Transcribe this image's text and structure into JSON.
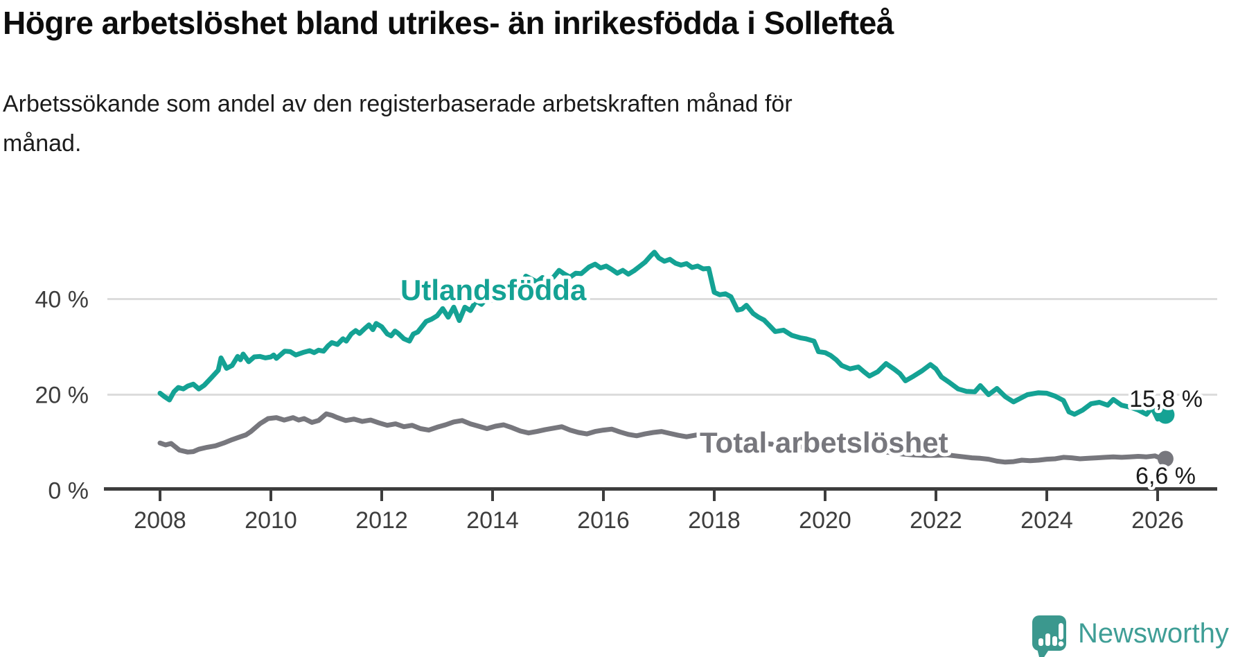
{
  "header": {
    "title": "Högre arbetslöshet bland utrikes- än inrikesfödda i Sollefteå",
    "subtitle": "Arbetssökande som andel av den registerbaserade arbetskraften månad för\nmånad."
  },
  "branding": {
    "logo_text": "Newsworthy",
    "logo_icon": "speech-bubble-bar-chart-exclamation",
    "logo_color": "#3b988e",
    "logo_text_color": "#3f9e96"
  },
  "colors": {
    "foreign_born_line": "#14a294",
    "total_line": "#77777d",
    "axis": "#3d3d3d",
    "gridline": "#dcdcdc",
    "value_label": "#1a1a1a"
  },
  "chart_data": {
    "type": "line",
    "title": "Högre arbetslöshet bland utrikes- än inrikesfödda i Sollefteå",
    "subtitle": "Arbetssökande som andel av den registerbaserade arbetskraften månad för månad.",
    "unit": "%",
    "grid": "horizontal",
    "legend_position": "inline-labels",
    "x_axis": {
      "ticks": [
        2008,
        2010,
        2012,
        2014,
        2016,
        2018,
        2020,
        2022,
        2024,
        2026
      ],
      "range": [
        2007.0,
        2027.1
      ]
    },
    "y_axis": {
      "ticks": [
        {
          "value": 40,
          "label": "40 %",
          "grid": true
        },
        {
          "value": 20,
          "label": "20 %",
          "grid": true
        },
        {
          "value": 0,
          "label": "0 %",
          "grid": false
        }
      ],
      "range": [
        0,
        52
      ]
    },
    "series": [
      {
        "name": "Utlandsfödda",
        "color": "#14a294",
        "end_value": 15.8,
        "end_value_label": "15,8 %",
        "points": [
          [
            2008.0,
            20.3
          ],
          [
            2008.08,
            19.6
          ],
          [
            2008.17,
            18.9
          ],
          [
            2008.25,
            20.6
          ],
          [
            2008.33,
            21.5
          ],
          [
            2008.42,
            21.2
          ],
          [
            2008.5,
            21.8
          ],
          [
            2008.6,
            22.2
          ],
          [
            2008.7,
            21.2
          ],
          [
            2008.8,
            22.0
          ],
          [
            2008.93,
            23.6
          ],
          [
            2009.05,
            25.1
          ],
          [
            2009.1,
            27.7
          ],
          [
            2009.2,
            25.5
          ],
          [
            2009.3,
            26.1
          ],
          [
            2009.4,
            28.0
          ],
          [
            2009.45,
            27.3
          ],
          [
            2009.5,
            28.5
          ],
          [
            2009.6,
            26.9
          ],
          [
            2009.7,
            27.9
          ],
          [
            2009.8,
            28.0
          ],
          [
            2009.9,
            27.7
          ],
          [
            2010.0,
            27.9
          ],
          [
            2010.05,
            28.3
          ],
          [
            2010.1,
            27.6
          ],
          [
            2010.25,
            29.1
          ],
          [
            2010.35,
            29.0
          ],
          [
            2010.45,
            28.3
          ],
          [
            2010.6,
            28.9
          ],
          [
            2010.7,
            29.2
          ],
          [
            2010.78,
            28.8
          ],
          [
            2010.86,
            29.3
          ],
          [
            2010.95,
            29.1
          ],
          [
            2011.03,
            30.2
          ],
          [
            2011.1,
            30.9
          ],
          [
            2011.2,
            30.5
          ],
          [
            2011.3,
            31.7
          ],
          [
            2011.36,
            31.2
          ],
          [
            2011.45,
            32.7
          ],
          [
            2011.53,
            33.4
          ],
          [
            2011.6,
            32.8
          ],
          [
            2011.7,
            33.9
          ],
          [
            2011.77,
            34.6
          ],
          [
            2011.84,
            33.6
          ],
          [
            2011.9,
            34.9
          ],
          [
            2012.0,
            34.2
          ],
          [
            2012.1,
            32.7
          ],
          [
            2012.17,
            32.3
          ],
          [
            2012.24,
            33.3
          ],
          [
            2012.3,
            32.8
          ],
          [
            2012.4,
            31.7
          ],
          [
            2012.5,
            31.2
          ],
          [
            2012.57,
            32.7
          ],
          [
            2012.65,
            33.1
          ],
          [
            2012.8,
            35.3
          ],
          [
            2012.9,
            35.8
          ],
          [
            2013.0,
            36.5
          ],
          [
            2013.1,
            38.0
          ],
          [
            2013.2,
            36.2
          ],
          [
            2013.3,
            38.3
          ],
          [
            2013.4,
            35.5
          ],
          [
            2013.5,
            38.3
          ],
          [
            2013.6,
            37.6
          ],
          [
            2013.7,
            39.6
          ],
          [
            2013.8,
            38.9
          ],
          [
            2013.9,
            40.2
          ],
          [
            2014.0,
            39.8
          ],
          [
            2014.1,
            41.2
          ],
          [
            2014.2,
            42.8
          ],
          [
            2014.3,
            42.2
          ],
          [
            2014.4,
            41.3
          ],
          [
            2014.5,
            42.5
          ],
          [
            2014.6,
            44.8
          ],
          [
            2014.7,
            44.2
          ],
          [
            2014.8,
            43.6
          ],
          [
            2014.9,
            44.5
          ],
          [
            2015.0,
            43.8
          ],
          [
            2015.1,
            44.6
          ],
          [
            2015.2,
            46.0
          ],
          [
            2015.3,
            45.2
          ],
          [
            2015.4,
            44.6
          ],
          [
            2015.5,
            45.4
          ],
          [
            2015.6,
            45.3
          ],
          [
            2015.74,
            46.7
          ],
          [
            2015.85,
            47.3
          ],
          [
            2015.95,
            46.5
          ],
          [
            2016.05,
            46.9
          ],
          [
            2016.15,
            46.2
          ],
          [
            2016.25,
            45.4
          ],
          [
            2016.35,
            46.0
          ],
          [
            2016.45,
            45.2
          ],
          [
            2016.55,
            45.9
          ],
          [
            2016.65,
            46.8
          ],
          [
            2016.75,
            47.7
          ],
          [
            2016.85,
            49.0
          ],
          [
            2016.92,
            49.8
          ],
          [
            2017.0,
            48.6
          ],
          [
            2017.1,
            47.9
          ],
          [
            2017.2,
            48.3
          ],
          [
            2017.3,
            47.5
          ],
          [
            2017.4,
            47.1
          ],
          [
            2017.5,
            47.4
          ],
          [
            2017.6,
            46.6
          ],
          [
            2017.7,
            46.9
          ],
          [
            2017.8,
            46.3
          ],
          [
            2017.9,
            46.4
          ],
          [
            2018.0,
            41.4
          ],
          [
            2018.1,
            40.9
          ],
          [
            2018.2,
            41.1
          ],
          [
            2018.3,
            40.5
          ],
          [
            2018.42,
            37.7
          ],
          [
            2018.5,
            37.9
          ],
          [
            2018.58,
            38.7
          ],
          [
            2018.7,
            37.0
          ],
          [
            2018.8,
            36.2
          ],
          [
            2018.9,
            35.6
          ],
          [
            2019.0,
            34.4
          ],
          [
            2019.1,
            33.2
          ],
          [
            2019.25,
            33.5
          ],
          [
            2019.4,
            32.4
          ],
          [
            2019.55,
            31.9
          ],
          [
            2019.65,
            31.7
          ],
          [
            2019.8,
            31.2
          ],
          [
            2019.88,
            29.0
          ],
          [
            2020.0,
            28.8
          ],
          [
            2020.1,
            28.2
          ],
          [
            2020.2,
            27.3
          ],
          [
            2020.3,
            26.1
          ],
          [
            2020.45,
            25.4
          ],
          [
            2020.6,
            25.8
          ],
          [
            2020.7,
            24.8
          ],
          [
            2020.8,
            23.9
          ],
          [
            2020.95,
            24.8
          ],
          [
            2021.1,
            26.5
          ],
          [
            2021.25,
            25.3
          ],
          [
            2021.35,
            24.4
          ],
          [
            2021.45,
            22.9
          ],
          [
            2021.6,
            23.9
          ],
          [
            2021.75,
            25.0
          ],
          [
            2021.9,
            26.3
          ],
          [
            2022.0,
            25.4
          ],
          [
            2022.1,
            23.7
          ],
          [
            2022.25,
            22.5
          ],
          [
            2022.4,
            21.2
          ],
          [
            2022.55,
            20.7
          ],
          [
            2022.7,
            20.6
          ],
          [
            2022.8,
            21.9
          ],
          [
            2022.95,
            20.0
          ],
          [
            2023.1,
            21.3
          ],
          [
            2023.25,
            19.6
          ],
          [
            2023.4,
            18.5
          ],
          [
            2023.55,
            19.4
          ],
          [
            2023.65,
            20.0
          ],
          [
            2023.85,
            20.4
          ],
          [
            2024.0,
            20.3
          ],
          [
            2024.15,
            19.7
          ],
          [
            2024.3,
            18.8
          ],
          [
            2024.4,
            16.4
          ],
          [
            2024.5,
            15.9
          ],
          [
            2024.65,
            16.8
          ],
          [
            2024.8,
            18.1
          ],
          [
            2024.95,
            18.4
          ],
          [
            2025.1,
            17.8
          ],
          [
            2025.2,
            19.0
          ],
          [
            2025.35,
            17.8
          ],
          [
            2025.5,
            17.4
          ],
          [
            2025.65,
            16.8
          ],
          [
            2025.8,
            15.9
          ],
          [
            2025.9,
            17.3
          ],
          [
            2026.0,
            14.9
          ],
          [
            2026.08,
            15.8
          ]
        ]
      },
      {
        "name": "Total arbetslöshet",
        "color": "#77777d",
        "end_value": 6.6,
        "end_value_label": "6,6 %",
        "points": [
          [
            2008.0,
            9.9
          ],
          [
            2008.1,
            9.5
          ],
          [
            2008.2,
            9.8
          ],
          [
            2008.35,
            8.4
          ],
          [
            2008.5,
            8.0
          ],
          [
            2008.6,
            8.1
          ],
          [
            2008.7,
            8.6
          ],
          [
            2008.85,
            9.0
          ],
          [
            2009.0,
            9.3
          ],
          [
            2009.15,
            9.9
          ],
          [
            2009.3,
            10.6
          ],
          [
            2009.45,
            11.2
          ],
          [
            2009.55,
            11.6
          ],
          [
            2009.64,
            12.3
          ],
          [
            2009.8,
            13.9
          ],
          [
            2009.95,
            15.0
          ],
          [
            2010.1,
            15.2
          ],
          [
            2010.24,
            14.7
          ],
          [
            2010.4,
            15.2
          ],
          [
            2010.5,
            14.7
          ],
          [
            2010.6,
            15.0
          ],
          [
            2010.74,
            14.2
          ],
          [
            2010.86,
            14.6
          ],
          [
            2011.0,
            16.0
          ],
          [
            2011.1,
            15.7
          ],
          [
            2011.2,
            15.2
          ],
          [
            2011.35,
            14.6
          ],
          [
            2011.5,
            14.9
          ],
          [
            2011.65,
            14.4
          ],
          [
            2011.8,
            14.7
          ],
          [
            2011.95,
            14.1
          ],
          [
            2012.1,
            13.6
          ],
          [
            2012.25,
            13.9
          ],
          [
            2012.4,
            13.3
          ],
          [
            2012.55,
            13.6
          ],
          [
            2012.7,
            12.9
          ],
          [
            2012.85,
            12.6
          ],
          [
            2013.0,
            13.2
          ],
          [
            2013.15,
            13.7
          ],
          [
            2013.3,
            14.3
          ],
          [
            2013.45,
            14.6
          ],
          [
            2013.6,
            13.9
          ],
          [
            2013.75,
            13.4
          ],
          [
            2013.9,
            12.9
          ],
          [
            2014.05,
            13.4
          ],
          [
            2014.2,
            13.7
          ],
          [
            2014.35,
            13.1
          ],
          [
            2014.5,
            12.4
          ],
          [
            2014.65,
            12.0
          ],
          [
            2014.8,
            12.3
          ],
          [
            2014.95,
            12.7
          ],
          [
            2015.1,
            13.0
          ],
          [
            2015.25,
            13.3
          ],
          [
            2015.4,
            12.6
          ],
          [
            2015.55,
            12.1
          ],
          [
            2015.7,
            11.8
          ],
          [
            2015.85,
            12.3
          ],
          [
            2016.0,
            12.6
          ],
          [
            2016.15,
            12.8
          ],
          [
            2016.3,
            12.2
          ],
          [
            2016.45,
            11.7
          ],
          [
            2016.6,
            11.4
          ],
          [
            2016.75,
            11.8
          ],
          [
            2016.9,
            12.1
          ],
          [
            2017.05,
            12.3
          ],
          [
            2017.2,
            11.9
          ],
          [
            2017.35,
            11.5
          ],
          [
            2017.5,
            11.2
          ],
          [
            2017.65,
            11.5
          ],
          [
            2017.8,
            11.8
          ],
          [
            2017.95,
            11.4
          ],
          [
            2018.1,
            11.1
          ],
          [
            2018.25,
            10.7
          ],
          [
            2018.4,
            10.3
          ],
          [
            2018.55,
            10.6
          ],
          [
            2018.7,
            10.2
          ],
          [
            2018.85,
            9.9
          ],
          [
            2019.0,
            9.7
          ],
          [
            2019.2,
            9.5
          ],
          [
            2019.4,
            9.2
          ],
          [
            2019.6,
            9.0
          ],
          [
            2019.8,
            8.8
          ],
          [
            2020.0,
            9.0
          ],
          [
            2020.2,
            9.3
          ],
          [
            2020.4,
            8.9
          ],
          [
            2020.6,
            8.6
          ],
          [
            2020.8,
            8.3
          ],
          [
            2021.0,
            8.1
          ],
          [
            2021.2,
            7.9
          ],
          [
            2021.4,
            7.6
          ],
          [
            2021.6,
            7.4
          ],
          [
            2021.8,
            7.3
          ],
          [
            2022.0,
            7.3
          ],
          [
            2022.2,
            7.4
          ],
          [
            2022.35,
            7.2
          ],
          [
            2022.5,
            7.0
          ],
          [
            2022.65,
            6.8
          ],
          [
            2022.8,
            6.7
          ],
          [
            2022.95,
            6.5
          ],
          [
            2023.1,
            6.1
          ],
          [
            2023.25,
            5.9
          ],
          [
            2023.4,
            6.0
          ],
          [
            2023.55,
            6.3
          ],
          [
            2023.7,
            6.2
          ],
          [
            2023.85,
            6.3
          ],
          [
            2024.0,
            6.5
          ],
          [
            2024.15,
            6.6
          ],
          [
            2024.3,
            6.9
          ],
          [
            2024.45,
            6.8
          ],
          [
            2024.6,
            6.6
          ],
          [
            2024.75,
            6.7
          ],
          [
            2024.9,
            6.8
          ],
          [
            2025.05,
            6.9
          ],
          [
            2025.2,
            7.0
          ],
          [
            2025.35,
            6.9
          ],
          [
            2025.5,
            7.0
          ],
          [
            2025.65,
            7.1
          ],
          [
            2025.8,
            7.0
          ],
          [
            2025.95,
            7.2
          ],
          [
            2026.08,
            6.6
          ]
        ]
      }
    ]
  }
}
